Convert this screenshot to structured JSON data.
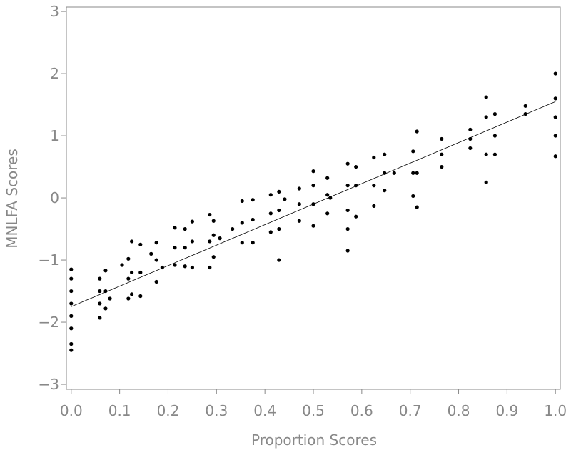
{
  "chart_data": {
    "type": "scatter",
    "xlabel": "Proportion Scores",
    "ylabel": "MNLFA Scores",
    "color": "#000000",
    "x": [
      0,
      0,
      0,
      0,
      0,
      0,
      0,
      0,
      0.059,
      0.059,
      0.059,
      0.059,
      0.071,
      0.071,
      0.071,
      0.118,
      0.118,
      0.118,
      0.125,
      0.125,
      0.125,
      0.143,
      0.143,
      0.143,
      0.176,
      0.176,
      0.176,
      0.214,
      0.214,
      0.214,
      0.235,
      0.235,
      0.235,
      0.25,
      0.25,
      0.25,
      0.286,
      0.286,
      0.286,
      0.294,
      0.294,
      0.294,
      0.353,
      0.353,
      0.353,
      0.375,
      0.375,
      0.375,
      0.412,
      0.412,
      0.412,
      0.429,
      0.429,
      0.429,
      0.429,
      0.471,
      0.471,
      0.471,
      0.5,
      0.5,
      0.5,
      0.5,
      0.529,
      0.529,
      0.529,
      0.571,
      0.571,
      0.571,
      0.571,
      0.571,
      0.588,
      0.588,
      0.588,
      0.625,
      0.625,
      0.625,
      0.647,
      0.647,
      0.647,
      0.706,
      0.706,
      0.706,
      0.714,
      0.714,
      0.714,
      0.765,
      0.765,
      0.765,
      0.824,
      0.824,
      0.824,
      0.857,
      0.857,
      0.857,
      0.857,
      0.875,
      0.875,
      0.875,
      0.938,
      0.938,
      1,
      1,
      1,
      1,
      1,
      0.105,
      0.188,
      0.307,
      0.333,
      0.667,
      0.535,
      0.08,
      0.165,
      0.441
    ],
    "y": [
      -2.45,
      -2.35,
      -2.1,
      -1.9,
      -1.7,
      -1.5,
      -1.3,
      -1.15,
      -1.93,
      -1.7,
      -1.5,
      -1.3,
      -1.78,
      -1.5,
      -1.17,
      -1.62,
      -1.3,
      -0.98,
      -1.55,
      -1.2,
      -0.7,
      -1.58,
      -1.2,
      -0.75,
      -1.35,
      -1.0,
      -0.72,
      -1.08,
      -0.8,
      -0.48,
      -1.1,
      -0.8,
      -0.5,
      -1.12,
      -0.7,
      -0.38,
      -1.12,
      -0.7,
      -0.27,
      -0.95,
      -0.6,
      -0.37,
      -0.72,
      -0.4,
      -0.05,
      -0.72,
      -0.35,
      -0.03,
      -0.55,
      -0.25,
      0.05,
      -1.0,
      -0.5,
      -0.2,
      0.1,
      -0.37,
      -0.1,
      0.15,
      -0.45,
      -0.1,
      0.2,
      0.43,
      -0.25,
      0.05,
      0.32,
      -0.85,
      -0.5,
      -0.2,
      0.2,
      0.55,
      -0.3,
      0.2,
      0.5,
      -0.13,
      0.2,
      0.65,
      0.12,
      0.4,
      0.7,
      0.03,
      0.4,
      0.75,
      -0.15,
      0.4,
      1.07,
      0.5,
      0.7,
      0.95,
      0.8,
      0.95,
      1.1,
      0.25,
      0.7,
      1.3,
      1.62,
      0.7,
      1.0,
      1.35,
      1.35,
      1.48,
      0.67,
      1.0,
      1.3,
      1.6,
      2.0,
      -1.08,
      -1.12,
      -0.65,
      -0.5,
      0.4,
      0.0,
      -1.62,
      -0.9,
      -0.02
    ],
    "fit_line": {
      "x": [
        0,
        1
      ],
      "y": [
        -1.75,
        1.55
      ]
    },
    "xlim": [
      -0.01,
      1.01
    ],
    "ylim": [
      -3.08,
      3.07
    ],
    "xticks": [
      {
        "value": 0,
        "label": "0.0"
      },
      0.1,
      0.2,
      0.3,
      0.4,
      0.5,
      0.6,
      0.7,
      0.8,
      0.9,
      {
        "value": 1,
        "label": "1.0"
      }
    ],
    "yticks": [
      {
        "value": -3,
        "label": "−3"
      },
      {
        "value": -2,
        "label": "−2"
      },
      {
        "value": -1,
        "label": "−1"
      },
      0,
      1,
      2,
      3
    ]
  }
}
